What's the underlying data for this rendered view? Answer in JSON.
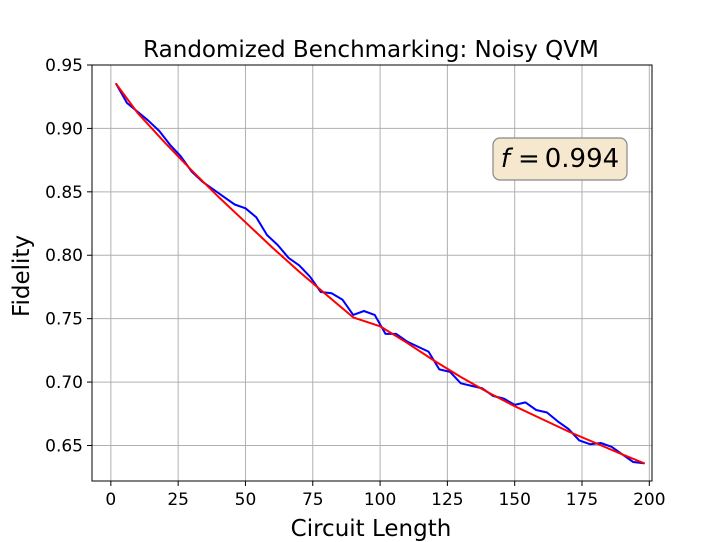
{
  "chart_data": {
    "type": "line",
    "title": "Randomized Benchmarking: Noisy QVM",
    "xlabel": "Circuit Length",
    "ylabel": "Fidelity",
    "xlim": [
      -7,
      201
    ],
    "ylim": [
      0.622,
      0.95
    ],
    "xticks": [
      0,
      25,
      50,
      75,
      100,
      125,
      150,
      175,
      200
    ],
    "yticks": [
      0.65,
      0.7,
      0.75,
      0.8,
      0.85,
      0.9,
      0.95
    ],
    "xtick_labels": [
      "0",
      "25",
      "50",
      "75",
      "100",
      "125",
      "150",
      "175",
      "200"
    ],
    "ytick_labels": [
      "0.65",
      "0.70",
      "0.75",
      "0.80",
      "0.85",
      "0.90",
      "0.95"
    ],
    "grid": true,
    "annotation": {
      "label": "f",
      "value": "0.994",
      "box_color": "#f5e8cf",
      "placement": "upper-right"
    },
    "series": [
      {
        "color": "#0000ff",
        "x": [
          2,
          6,
          10,
          14,
          18,
          22,
          26,
          30,
          34,
          38,
          42,
          46,
          50,
          54,
          58,
          62,
          66,
          70,
          74,
          78,
          82,
          86,
          90,
          94,
          98,
          102,
          106,
          110,
          114,
          118,
          122,
          126,
          130,
          134,
          138,
          142,
          146,
          150,
          154,
          158,
          162,
          166,
          170,
          174,
          178,
          182,
          186,
          190,
          194,
          198
        ],
        "y": [
          0.935,
          0.92,
          0.913,
          0.906,
          0.898,
          0.887,
          0.878,
          0.866,
          0.858,
          0.852,
          0.846,
          0.84,
          0.837,
          0.83,
          0.816,
          0.808,
          0.798,
          0.792,
          0.783,
          0.771,
          0.77,
          0.765,
          0.753,
          0.756,
          0.753,
          0.738,
          0.738,
          0.732,
          0.728,
          0.724,
          0.71,
          0.708,
          0.699,
          0.697,
          0.695,
          0.689,
          0.687,
          0.682,
          0.684,
          0.678,
          0.676,
          0.669,
          0.663,
          0.654,
          0.651,
          0.652,
          0.649,
          0.643,
          0.637,
          0.636
        ]
      },
      {
        "color": "#ff0000",
        "fit": true,
        "x": [
          2,
          10,
          20,
          30,
          40,
          50,
          60,
          70,
          80,
          90,
          100,
          110,
          120,
          130,
          140,
          150,
          160,
          170,
          180,
          190,
          198
        ],
        "y": [
          0.935,
          0.912,
          0.889,
          0.867,
          0.846,
          0.826,
          0.806,
          0.787,
          0.769,
          0.751,
          0.744,
          0.731,
          0.717,
          0.704,
          0.692,
          0.681,
          0.671,
          0.661,
          0.652,
          0.643,
          0.636
        ]
      }
    ]
  }
}
